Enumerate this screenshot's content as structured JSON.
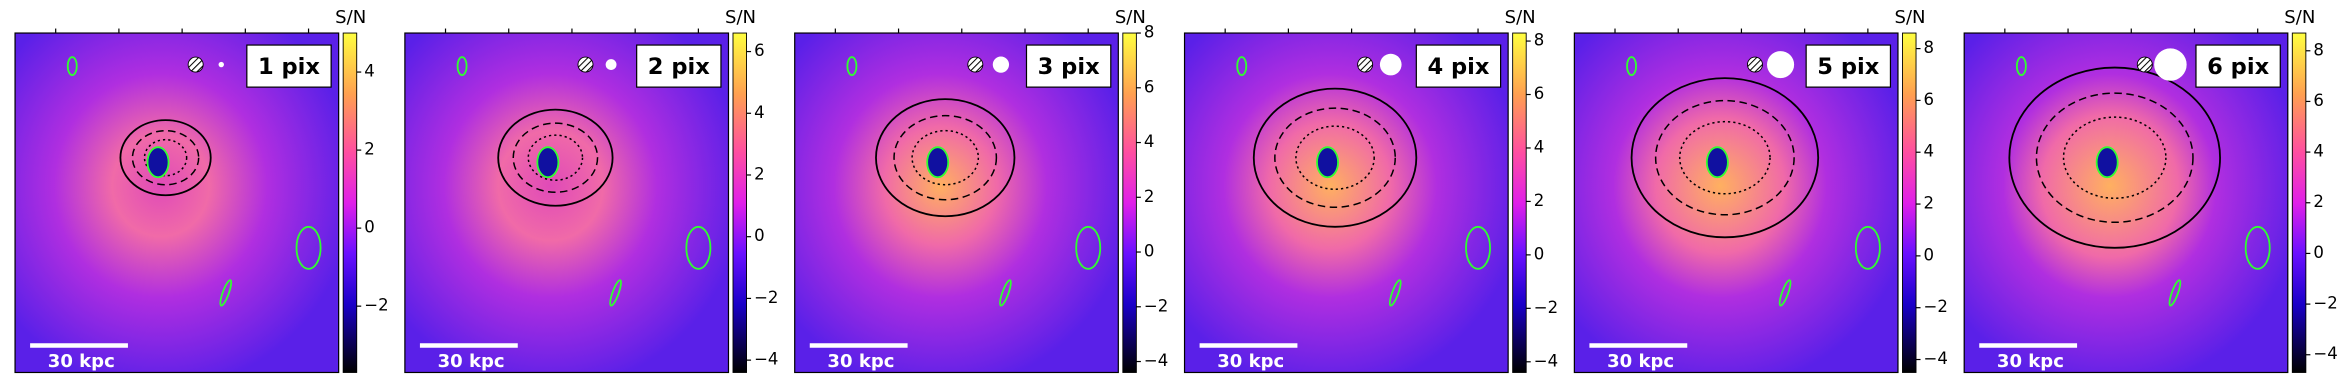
{
  "panels": [
    {
      "label": "1 pix",
      "scalebar": "30 kpc",
      "colorbar": {
        "label": "S/N",
        "clim": [
          -3.7,
          5.0
        ],
        "ticks": [
          {
            "value": -2,
            "label": "−2"
          },
          0,
          2,
          4
        ]
      }
    },
    {
      "label": "2 pix",
      "scalebar": "30 kpc",
      "colorbar": {
        "label": "S/N",
        "clim": [
          -4.4,
          6.6
        ],
        "ticks": [
          {
            "value": -4,
            "label": "−4"
          },
          {
            "value": -2,
            "label": "−2"
          },
          0,
          2,
          4,
          6
        ]
      }
    },
    {
      "label": "3 pix",
      "scalebar": "30 kpc",
      "colorbar": {
        "label": "S/N",
        "clim": [
          -4.4,
          8.0
        ],
        "ticks": [
          {
            "value": -4,
            "label": "−4"
          },
          {
            "value": -2,
            "label": "−2"
          },
          0,
          2,
          4,
          6,
          8
        ]
      }
    },
    {
      "label": "4 pix",
      "scalebar": "30 kpc",
      "colorbar": {
        "label": "S/N",
        "clim": [
          -4.4,
          8.3
        ],
        "ticks": [
          {
            "value": -4,
            "label": "−4"
          },
          {
            "value": -2,
            "label": "−2"
          },
          0,
          2,
          4,
          6,
          8
        ]
      }
    },
    {
      "label": "5 pix",
      "scalebar": "30 kpc",
      "colorbar": {
        "label": "S/N",
        "clim": [
          -4.5,
          8.6
        ],
        "ticks": [
          {
            "value": -4,
            "label": "−4"
          },
          {
            "value": -2,
            "label": "−2"
          },
          0,
          2,
          4,
          6,
          8
        ]
      }
    },
    {
      "label": "6 pix",
      "scalebar": "30 kpc",
      "colorbar": {
        "label": "S/N",
        "clim": [
          -4.7,
          8.7
        ],
        "ticks": [
          {
            "value": -4,
            "label": "−4"
          },
          {
            "value": -2,
            "label": "−2"
          },
          0,
          2,
          4,
          6,
          8
        ]
      }
    }
  ]
}
